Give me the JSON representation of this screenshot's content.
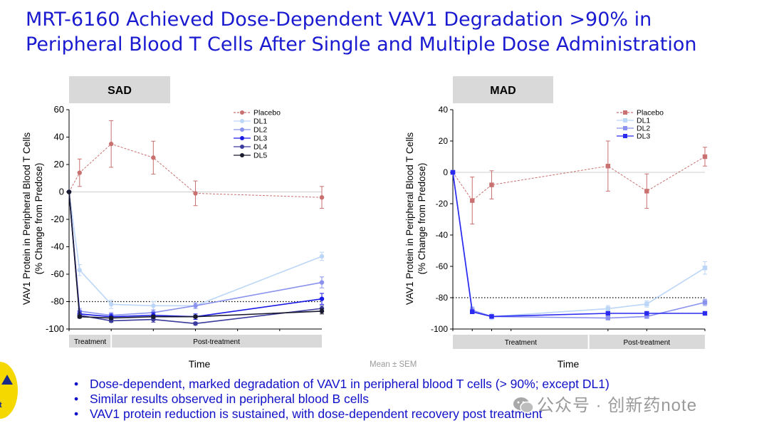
{
  "slide": {
    "title_line1": "MRT-6160 Achieved Dose-Dependent VAV1 Degradation >90% in",
    "title_line2": "Peripheral Blood T Cells After Single and Multiple Dose Administration",
    "footnote": "Mean ± SEM",
    "bullets": [
      "Dose-dependent, marked degradation of VAV1 in peripheral blood T cells (> 90%; except DL1)",
      "Similar results observed in peripheral blood B cells",
      "VAV1 protein reduction is sustained, with dose-dependent recovery post treatment"
    ],
    "watermark": "公众号 · 创新药note",
    "logo_letter": "t",
    "colors": {
      "title": "#1a1ad0",
      "bullets": "#1010c8",
      "logo": "#f5d800"
    }
  },
  "chart_data": [
    {
      "type": "line",
      "panel_title": "SAD",
      "ylabel_line1": "VAV1 Protein in Peripheral Blood T Cells",
      "ylabel_line2": "(% Change from Predose)",
      "xlabel": "Time",
      "ylim": [
        -100,
        60
      ],
      "yticks": [
        60,
        40,
        20,
        0,
        -20,
        -40,
        -60,
        -80,
        -100
      ],
      "x": [
        0,
        1,
        2,
        3,
        4,
        5
      ],
      "xlim": [
        0,
        6
      ],
      "zero_line": 0,
      "threshold_line": -80,
      "phases": [
        {
          "label": "Treatment",
          "start": 0,
          "end": 1
        },
        {
          "label": "Post-treatment",
          "start": 1,
          "end": 6
        }
      ],
      "legend_position": "top-right",
      "series": [
        {
          "name": "Placebo",
          "color": "#c97070",
          "marker": "circle",
          "dashed": true,
          "x": [
            0,
            0.25,
            1,
            2,
            3,
            6
          ],
          "y": [
            0,
            14,
            35,
            25,
            -1,
            -4
          ],
          "err": [
            0,
            10,
            17,
            12,
            9,
            8
          ]
        },
        {
          "name": "DL1",
          "color": "#bcd6f7",
          "marker": "circle",
          "dashed": false,
          "x": [
            0,
            0.25,
            1,
            2,
            3,
            6
          ],
          "y": [
            0,
            -57,
            -82,
            -83,
            -83,
            -47
          ],
          "err": [
            0,
            4,
            3,
            3,
            2,
            3
          ]
        },
        {
          "name": "DL2",
          "color": "#8a92ee",
          "marker": "circle",
          "dashed": false,
          "x": [
            0,
            0.25,
            1,
            2,
            3,
            6
          ],
          "y": [
            0,
            -87,
            -90,
            -88,
            -83,
            -66
          ],
          "err": [
            0,
            2,
            2,
            2,
            2,
            4
          ]
        },
        {
          "name": "DL3",
          "color": "#1a1ae6",
          "marker": "circle",
          "dashed": false,
          "x": [
            0,
            0.25,
            1,
            2,
            3,
            6
          ],
          "y": [
            0,
            -89,
            -91,
            -90,
            -91,
            -78
          ],
          "err": [
            0,
            2,
            2,
            2,
            2,
            4
          ]
        },
        {
          "name": "DL4",
          "color": "#3b3b9e",
          "marker": "circle",
          "dashed": false,
          "x": [
            0,
            0.25,
            1,
            2,
            3,
            6
          ],
          "y": [
            0,
            -90,
            -94,
            -93,
            -96,
            -85
          ],
          "err": [
            0,
            2,
            1,
            2,
            1,
            2
          ]
        },
        {
          "name": "DL5",
          "color": "#1a1a2e",
          "marker": "circle",
          "dashed": false,
          "x": [
            0,
            0.25,
            1,
            2,
            3,
            6
          ],
          "y": [
            0,
            -91,
            -92,
            -91,
            -91,
            -87
          ],
          "err": [
            0,
            1,
            1,
            1,
            1,
            2
          ]
        }
      ]
    },
    {
      "type": "line",
      "panel_title": "MAD",
      "ylabel_line1": "VAV1 Protein in Peripheral Blood T Cells",
      "ylabel_line2": "(% Change from Predose)",
      "xlabel": "Time",
      "ylim": [
        -100,
        40
      ],
      "yticks": [
        40,
        20,
        0,
        -20,
        -40,
        -60,
        -80,
        -100
      ],
      "x": [
        0,
        0.5,
        1,
        1.5,
        4,
        5,
        6.5
      ],
      "xlim": [
        0,
        6.5
      ],
      "zero_line": 0,
      "threshold_line": -80,
      "phases": [
        {
          "label": "Treatment",
          "start": 0,
          "end": 3.5
        },
        {
          "label": "Post-treatment",
          "start": 3.5,
          "end": 6.5
        }
      ],
      "legend_position": "top-right",
      "series": [
        {
          "name": "Placebo",
          "color": "#c97070",
          "marker": "square",
          "dashed": true,
          "x": [
            0,
            0.5,
            1,
            4,
            5,
            6.5
          ],
          "y": [
            0,
            -18,
            -8,
            4,
            -12,
            10
          ],
          "err": [
            0,
            15,
            9,
            16,
            11,
            6
          ]
        },
        {
          "name": "DL1",
          "color": "#bcd6f7",
          "marker": "square",
          "dashed": false,
          "x": [
            0,
            0.5,
            1,
            4,
            5,
            6.5
          ],
          "y": [
            0,
            -88,
            -92,
            -87,
            -84,
            -61
          ],
          "err": [
            0,
            2,
            2,
            2,
            2,
            4
          ]
        },
        {
          "name": "DL2",
          "color": "#8a92ee",
          "marker": "square",
          "dashed": false,
          "x": [
            0,
            0.5,
            1,
            4,
            5,
            6.5
          ],
          "y": [
            0,
            -88,
            -92,
            -93,
            -92,
            -83
          ],
          "err": [
            0,
            2,
            1,
            1,
            1,
            2
          ]
        },
        {
          "name": "DL3",
          "color": "#2a2af0",
          "marker": "square",
          "dashed": false,
          "x": [
            0,
            0.5,
            1,
            4,
            5,
            6.5
          ],
          "y": [
            0,
            -89,
            -92,
            -90,
            -90,
            -90
          ],
          "err": [
            0,
            1,
            1,
            1,
            1,
            1
          ]
        }
      ]
    }
  ]
}
